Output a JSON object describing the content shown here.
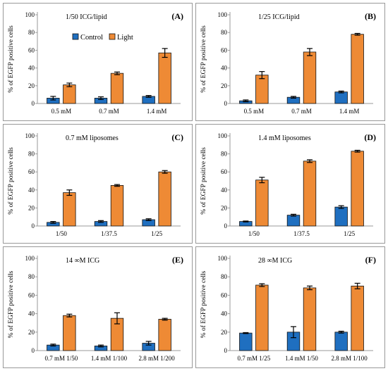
{
  "colors": {
    "control": "#1f6fc0",
    "light": "#ee8a35",
    "bar_outline": "#111111"
  },
  "legend": {
    "control": "Control",
    "light": "Light"
  },
  "chart_data": [
    {
      "id": "A",
      "type": "bar",
      "letter": "(A)",
      "title": "1/50 ICG/lipid",
      "ylabel": "% of EGFP positive cells",
      "ylim": [
        0,
        100
      ],
      "yticks": [
        "0",
        "20",
        "40",
        "60",
        "80",
        "100"
      ],
      "categories": [
        "0.5 mM",
        "0.7 mM",
        "1.4 mM"
      ],
      "show_legend": true,
      "series": [
        {
          "name": "Control",
          "values": [
            6,
            6,
            8
          ],
          "errors": [
            2,
            1.5,
            1
          ]
        },
        {
          "name": "Light",
          "values": [
            21,
            34,
            57
          ],
          "errors": [
            2,
            1.5,
            5
          ]
        }
      ]
    },
    {
      "id": "B",
      "type": "bar",
      "letter": "(B)",
      "title": "1/25 ICG/lipid",
      "ylabel": "% of EGFP positive cells",
      "ylim": [
        0,
        100
      ],
      "yticks": [
        "0",
        "20",
        "40",
        "60",
        "80",
        "100"
      ],
      "categories": [
        "0.5 mM",
        "0.7 mM",
        "1.4 mM"
      ],
      "series": [
        {
          "name": "Control",
          "values": [
            3,
            7,
            13
          ],
          "errors": [
            1,
            1,
            1
          ]
        },
        {
          "name": "Light",
          "values": [
            32,
            58,
            78
          ],
          "errors": [
            4,
            4,
            1
          ]
        }
      ]
    },
    {
      "id": "C",
      "type": "bar",
      "letter": "(C)",
      "title": "0.7 mM liposomes",
      "ylabel": "% of EGFP positive cells",
      "ylim": [
        0,
        100
      ],
      "yticks": [
        "0",
        "20",
        "40",
        "60",
        "80",
        "100"
      ],
      "categories": [
        "1/50",
        "1/37.5",
        "1/25"
      ],
      "series": [
        {
          "name": "Control",
          "values": [
            4,
            5,
            7
          ],
          "errors": [
            1,
            1,
            1
          ]
        },
        {
          "name": "Light",
          "values": [
            37,
            45,
            60
          ],
          "errors": [
            3,
            1,
            1.5
          ]
        }
      ]
    },
    {
      "id": "D",
      "type": "bar",
      "letter": "(D)",
      "title": "1.4 mM liposomes",
      "ylabel": "% of EGFP positive cells",
      "ylim": [
        0,
        100
      ],
      "yticks": [
        "0",
        "20",
        "40",
        "60",
        "80",
        "100"
      ],
      "categories": [
        "1/50",
        "1/37.5",
        "1/25"
      ],
      "series": [
        {
          "name": "Control",
          "values": [
            5,
            12,
            21
          ],
          "errors": [
            0.5,
            1,
            1.5
          ]
        },
        {
          "name": "Light",
          "values": [
            51,
            72,
            83
          ],
          "errors": [
            3,
            1.5,
            1
          ]
        }
      ]
    },
    {
      "id": "E",
      "type": "bar",
      "letter": "(E)",
      "title": "14 ∞M ICG",
      "ylabel": "% of EGFP positive cells",
      "ylim": [
        0,
        100
      ],
      "yticks": [
        "0",
        "20",
        "40",
        "60",
        "80",
        "100"
      ],
      "categories": [
        "0.7 mM 1/50",
        "1.4 mM 1/100",
        "2.8 mM 1/200"
      ],
      "series": [
        {
          "name": "Control",
          "values": [
            6,
            5,
            8
          ],
          "errors": [
            1,
            1,
            2
          ]
        },
        {
          "name": "Light",
          "values": [
            38,
            35,
            34
          ],
          "errors": [
            1.5,
            6,
            1
          ]
        }
      ]
    },
    {
      "id": "F",
      "type": "bar",
      "letter": "(F)",
      "title": "28 ∞M ICG",
      "ylabel": "% of EGFP positive cells",
      "ylim": [
        0,
        100
      ],
      "yticks": [
        "0",
        "20",
        "40",
        "60",
        "80",
        "100"
      ],
      "categories": [
        "0.7 mM 1/25",
        "1.4 mM 1/50",
        "2.8 mM 1/100"
      ],
      "series": [
        {
          "name": "Control",
          "values": [
            19,
            20,
            20
          ],
          "errors": [
            0.5,
            6,
            1
          ]
        },
        {
          "name": "Light",
          "values": [
            71,
            68,
            70
          ],
          "errors": [
            1.5,
            2,
            3
          ]
        }
      ]
    }
  ]
}
